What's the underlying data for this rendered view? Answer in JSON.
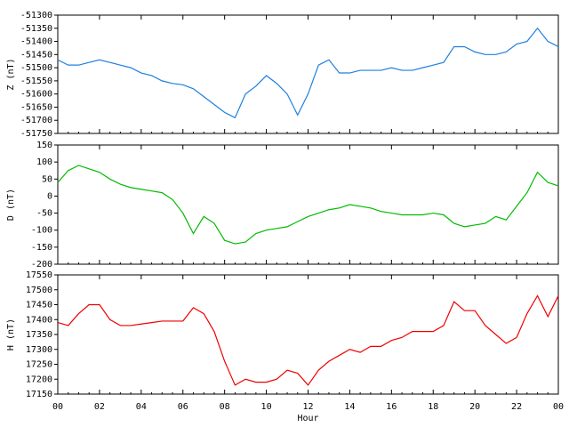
{
  "chart_data": [
    {
      "type": "line",
      "ylabel": "Z (nT)",
      "color": "#1e7fe0",
      "xlim": [
        0,
        24
      ],
      "ylim": [
        -51750,
        -51300
      ],
      "yticks": [
        -51750,
        -51700,
        -51650,
        -51600,
        -51550,
        -51500,
        -51450,
        -51400,
        -51350,
        -51300
      ],
      "x": [
        0,
        0.5,
        1,
        1.5,
        2,
        2.5,
        3,
        3.5,
        4,
        4.5,
        5,
        5.5,
        6,
        6.5,
        7,
        7.5,
        8,
        8.5,
        9,
        9.5,
        10,
        10.5,
        11,
        11.5,
        12,
        12.5,
        13,
        13.5,
        14,
        14.5,
        15,
        15.5,
        16,
        16.5,
        17,
        17.5,
        18,
        18.5,
        19,
        19.5,
        20,
        20.5,
        21,
        21.5,
        22,
        22.5,
        23,
        23.5,
        24
      ],
      "values": [
        -51470,
        -51490,
        -51490,
        -51480,
        -51470,
        -51480,
        -51490,
        -51500,
        -51520,
        -51530,
        -51550,
        -51560,
        -51565,
        -51580,
        -51610,
        -51640,
        -51670,
        -51690,
        -51600,
        -51570,
        -51530,
        -51560,
        -51600,
        -51680,
        -51600,
        -51490,
        -51470,
        -51520,
        -51520,
        -51510,
        -51510,
        -51510,
        -51500,
        -51510,
        -51510,
        -51500,
        -51490,
        -51480,
        -51420,
        -51420,
        -51440,
        -51450,
        -51450,
        -51440,
        -51410,
        -51400,
        -51350,
        -51400,
        -51420
      ]
    },
    {
      "type": "line",
      "ylabel": "D (nT)",
      "color": "#00bb00",
      "xlim": [
        0,
        24
      ],
      "ylim": [
        -200,
        150
      ],
      "yticks": [
        -200,
        -150,
        -100,
        -50,
        0,
        50,
        100,
        150
      ],
      "x": [
        0,
        0.5,
        1,
        1.5,
        2,
        2.5,
        3,
        3.5,
        4,
        4.5,
        5,
        5.5,
        6,
        6.5,
        7,
        7.5,
        8,
        8.5,
        9,
        9.5,
        10,
        10.5,
        11,
        11.5,
        12,
        12.5,
        13,
        13.5,
        14,
        14.5,
        15,
        15.5,
        16,
        16.5,
        17,
        17.5,
        18,
        18.5,
        19,
        19.5,
        20,
        20.5,
        21,
        21.5,
        22,
        22.5,
        23,
        23.5,
        24
      ],
      "values": [
        40,
        75,
        90,
        80,
        70,
        50,
        35,
        25,
        20,
        15,
        10,
        -10,
        -50,
        -110,
        -60,
        -80,
        -130,
        -140,
        -135,
        -110,
        -100,
        -95,
        -90,
        -75,
        -60,
        -50,
        -40,
        -35,
        -25,
        -30,
        -35,
        -45,
        -50,
        -55,
        -55,
        -55,
        -50,
        -55,
        -80,
        -90,
        -85,
        -80,
        -60,
        -70,
        -30,
        10,
        70,
        40,
        30
      ]
    },
    {
      "type": "line",
      "ylabel": "H (nT)",
      "xlabel": "Hour",
      "color": "#ee0000",
      "xlim": [
        0,
        24
      ],
      "xticks": [
        {
          "value": 0,
          "label": "00"
        },
        {
          "value": 2,
          "label": "02"
        },
        {
          "value": 4,
          "label": "04"
        },
        {
          "value": 6,
          "label": "06"
        },
        {
          "value": 8,
          "label": "08"
        },
        10,
        12,
        14,
        16,
        18,
        20,
        22,
        {
          "value": 24,
          "label": "00"
        }
      ],
      "ylim": [
        17150,
        17550
      ],
      "yticks": [
        17150,
        17200,
        17250,
        17300,
        17350,
        17400,
        17450,
        17500,
        17550
      ],
      "x": [
        0,
        0.5,
        1,
        1.5,
        2,
        2.5,
        3,
        3.5,
        4,
        4.5,
        5,
        5.5,
        6,
        6.5,
        7,
        7.5,
        8,
        8.5,
        9,
        9.5,
        10,
        10.5,
        11,
        11.5,
        12,
        12.5,
        13,
        13.5,
        14,
        14.5,
        15,
        15.5,
        16,
        16.5,
        17,
        17.5,
        18,
        18.5,
        19,
        19.5,
        20,
        20.5,
        21,
        21.5,
        22,
        22.5,
        23,
        23.5,
        24
      ],
      "values": [
        17390,
        17380,
        17420,
        17450,
        17450,
        17400,
        17380,
        17380,
        17385,
        17390,
        17395,
        17395,
        17395,
        17440,
        17420,
        17360,
        17260,
        17180,
        17200,
        17190,
        17190,
        17200,
        17230,
        17220,
        17180,
        17230,
        17260,
        17280,
        17300,
        17290,
        17310,
        17310,
        17330,
        17340,
        17360,
        17360,
        17360,
        17380,
        17460,
        17430,
        17430,
        17380,
        17350,
        17320,
        17340,
        17420,
        17480,
        17410,
        17480
      ]
    }
  ]
}
